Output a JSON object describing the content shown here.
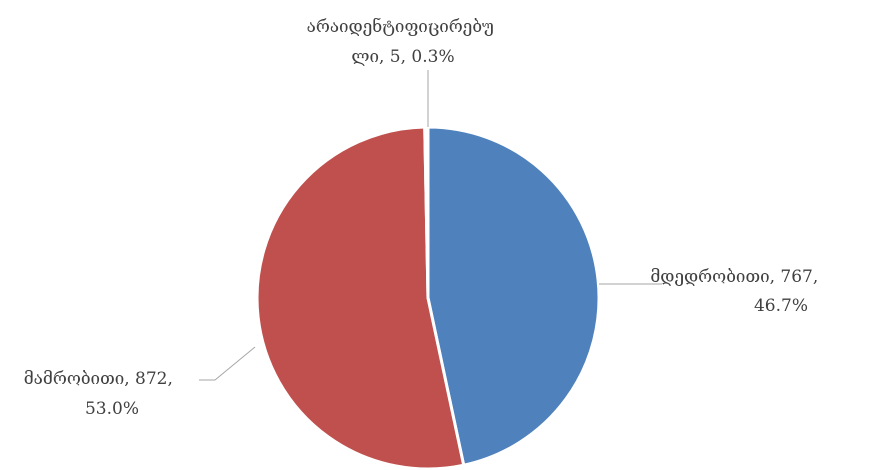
{
  "chart_data": {
    "type": "pie",
    "title": "",
    "categories": [
      "მდედრობითი",
      "მამრობითი",
      "არაიდენტიფიცირებული"
    ],
    "values": [
      767,
      872,
      5
    ],
    "percentages": [
      "46.7%",
      "53.0%",
      "0.3%"
    ],
    "colors": [
      "#4f81bd",
      "#c0504d",
      "#ffffff"
    ],
    "label_lines": [
      [
        "მდედრობითი, 767,",
        "46.7%"
      ],
      [
        "მამრობითი, 872,",
        "53.0%"
      ],
      [
        "არაიდენტიფიცირებუ",
        "ლი, 5, 0.3%"
      ]
    ],
    "legend": "none"
  }
}
